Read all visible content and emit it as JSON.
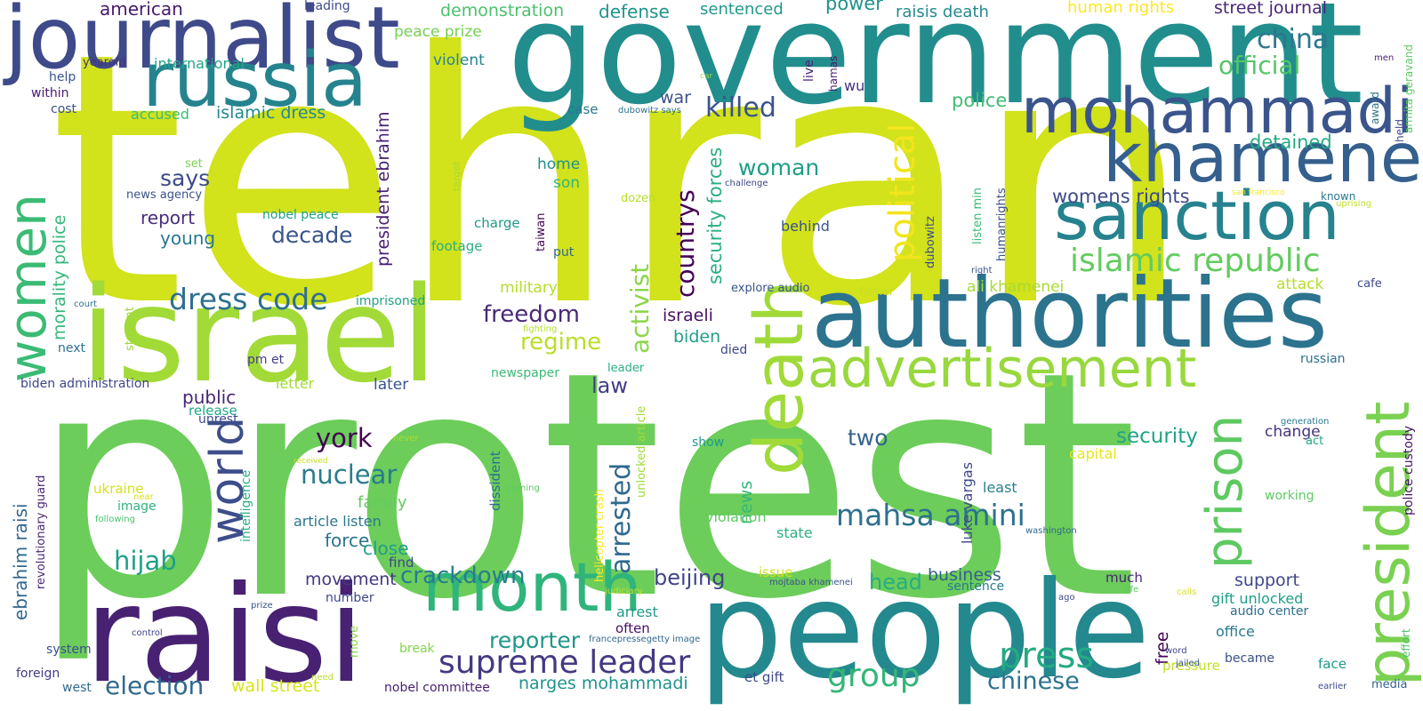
{
  "words": [
    {
      "text": "tehran",
      "color": "#d2e21b"
    },
    {
      "text": "protest",
      "color": "#6ccd5a"
    },
    {
      "text": "government",
      "color": "#228d8d"
    },
    {
      "text": "israel",
      "color": "#a2da37"
    },
    {
      "text": "raisi",
      "color": "#482173"
    },
    {
      "text": "people",
      "color": "#23898e"
    },
    {
      "text": "authorities",
      "color": "#2c738e"
    },
    {
      "text": "journalist",
      "color": "#3e4a89"
    },
    {
      "text": "russia",
      "color": "#25838e"
    },
    {
      "text": "mohammadi",
      "color": "#3a548c"
    },
    {
      "text": "khamenei",
      "color": "#355f8d"
    },
    {
      "text": "sanction",
      "color": "#26828e"
    },
    {
      "text": "death",
      "color": "#a0da39"
    },
    {
      "text": "advertisement",
      "color": "#98d83e"
    },
    {
      "text": "president",
      "color": "#7ad151"
    },
    {
      "text": "month",
      "color": "#2fb47c"
    },
    {
      "text": "women",
      "color": "#3bbb75"
    },
    {
      "text": "world",
      "color": "#3d4e8a"
    },
    {
      "text": "prison",
      "color": "#5ec962"
    },
    {
      "text": "press",
      "color": "#24aa83"
    },
    {
      "text": "supreme leader",
      "color": "#443983"
    },
    {
      "text": "group",
      "color": "#34b679"
    },
    {
      "text": "islamic republic",
      "color": "#63cb5f"
    },
    {
      "text": "political",
      "color": "#f1e51d"
    },
    {
      "text": "dress code",
      "color": "#2d708e"
    },
    {
      "text": "mahsa amini",
      "color": "#2d718e"
    },
    {
      "text": "election",
      "color": "#31688e"
    },
    {
      "text": "activist",
      "color": "#8bd646"
    },
    {
      "text": "arrested",
      "color": "#306a8e"
    },
    {
      "text": "countrys",
      "color": "#440154"
    },
    {
      "text": "killed",
      "color": "#3b528b"
    },
    {
      "text": "china",
      "color": "#2a778e"
    },
    {
      "text": "official",
      "color": "#52c569"
    },
    {
      "text": "hijab",
      "color": "#1fa088"
    },
    {
      "text": "nuclear",
      "color": "#287c8e"
    },
    {
      "text": "crackdown",
      "color": "#287d8e"
    },
    {
      "text": "freedom",
      "color": "#482878"
    },
    {
      "text": "regime",
      "color": "#b8de29"
    },
    {
      "text": "york",
      "color": "#440154"
    },
    {
      "text": "chinese",
      "color": "#2c728e"
    },
    {
      "text": "decade",
      "color": "#39558c"
    },
    {
      "text": "woman",
      "color": "#1f9e89"
    },
    {
      "text": "reporter",
      "color": "#1f968b"
    },
    {
      "text": "says",
      "color": "#3e4989"
    },
    {
      "text": "two",
      "color": "#33638d"
    },
    {
      "text": "security",
      "color": "#20a386"
    },
    {
      "text": "beijing",
      "color": "#414487"
    },
    {
      "text": "head",
      "color": "#26ad81"
    },
    {
      "text": "law",
      "color": "#433e85"
    },
    {
      "text": "security forces",
      "color": "#29af7f"
    },
    {
      "text": "power",
      "color": "#20928c"
    },
    {
      "text": "police",
      "color": "#3fbc73"
    },
    {
      "text": "wall street",
      "color": "#d8e219"
    },
    {
      "text": "womens rights",
      "color": "#3e4989"
    },
    {
      "text": "detained",
      "color": "#25ab82"
    },
    {
      "text": "ebrahim raisi",
      "color": "#31678e"
    },
    {
      "text": "narges mohammadi",
      "color": "#1f948c"
    },
    {
      "text": "street journal",
      "color": "#482475"
    },
    {
      "text": "american",
      "color": "#481a6c"
    },
    {
      "text": "demonstration",
      "color": "#4ac16d"
    },
    {
      "text": "defense",
      "color": "#20928c"
    },
    {
      "text": "sentenced",
      "color": "#1f988b"
    },
    {
      "text": "human rights",
      "color": "#fde725"
    },
    {
      "text": "raisis death",
      "color": "#23898e"
    },
    {
      "text": "islamic dress",
      "color": "#23898e"
    },
    {
      "text": "president ebrahim",
      "color": "#482173"
    },
    {
      "text": "morality police",
      "color": "#35b779"
    },
    {
      "text": "news",
      "color": "#35b779"
    },
    {
      "text": "young",
      "color": "#2a788e"
    },
    {
      "text": "report",
      "color": "#472d7b"
    },
    {
      "text": "public",
      "color": "#482475"
    },
    {
      "text": "war",
      "color": "#3b528b"
    },
    {
      "text": "business",
      "color": "#355f8d"
    },
    {
      "text": "biden",
      "color": "#1f9f88"
    },
    {
      "text": "israeli",
      "color": "#471063"
    },
    {
      "text": "movement",
      "color": "#453781"
    },
    {
      "text": "force",
      "color": "#2b758e"
    },
    {
      "text": "close",
      "color": "#1f9f88"
    },
    {
      "text": "family",
      "color": "#65cb5e"
    },
    {
      "text": "support",
      "color": "#3f4788"
    },
    {
      "text": "free",
      "color": "#440154"
    },
    {
      "text": "military",
      "color": "#b5de2b"
    },
    {
      "text": "violent",
      "color": "#25848e"
    },
    {
      "text": "accused",
      "color": "#3bbb75"
    },
    {
      "text": "peace prize",
      "color": "#75d054"
    },
    {
      "text": "international",
      "color": "#21a585"
    },
    {
      "text": "home",
      "color": "#21918c"
    },
    {
      "text": "son",
      "color": "#35b779"
    },
    {
      "text": "change",
      "color": "#46337f"
    },
    {
      "text": "capital",
      "color": "#e7e419"
    },
    {
      "text": "arrest",
      "color": "#1f9a8a"
    },
    {
      "text": "ali khamenei",
      "color": "#a8db34"
    },
    {
      "text": "attack",
      "color": "#b5de2b"
    },
    {
      "text": "luke vargas",
      "color": "#3e4a89"
    },
    {
      "text": "gift unlocked",
      "color": "#1fa187"
    },
    {
      "text": "audio center",
      "color": "#2e6e8e"
    },
    {
      "text": "office",
      "color": "#297a8e"
    },
    {
      "text": "pressure",
      "color": "#c2df23"
    },
    {
      "text": "dissident",
      "color": "#2e6f8e"
    },
    {
      "text": "behind",
      "color": "#3b518b"
    },
    {
      "text": "violation",
      "color": "#5ec962"
    },
    {
      "text": "state",
      "color": "#2ab07f"
    },
    {
      "text": "least",
      "color": "#277f8e"
    },
    {
      "text": "charge",
      "color": "#1e9b8a"
    },
    {
      "text": "footage",
      "color": "#29af7f"
    },
    {
      "text": "letter",
      "color": "#a2da37"
    },
    {
      "text": "later",
      "color": "#39558c"
    },
    {
      "text": "release",
      "color": "#21a685"
    },
    {
      "text": "article listen",
      "color": "#2a788e"
    },
    {
      "text": "find",
      "color": "#404588"
    },
    {
      "text": "nobel committee",
      "color": "#481f70"
    },
    {
      "text": "et gift",
      "color": "#3f4889"
    },
    {
      "text": "face",
      "color": "#1f978b"
    },
    {
      "text": "became",
      "color": "#3b518b"
    },
    {
      "text": "often",
      "color": "#471063"
    },
    {
      "text": "much",
      "color": "#482374"
    },
    {
      "text": "sentence",
      "color": "#287d8e"
    },
    {
      "text": "issue",
      "color": "#d0e11c"
    },
    {
      "text": "unrest",
      "color": "#3e4c8a"
    },
    {
      "text": "image",
      "color": "#2db27d"
    },
    {
      "text": "ukraine",
      "color": "#d5e21a"
    },
    {
      "text": "revolutionary guard",
      "color": "#482878"
    },
    {
      "text": "intelligence",
      "color": "#2ab07f"
    },
    {
      "text": "foreign",
      "color": "#433d84"
    },
    {
      "text": "west",
      "color": "#306a8e"
    },
    {
      "text": "system",
      "color": "#3b518b"
    },
    {
      "text": "break",
      "color": "#84d44b"
    },
    {
      "text": "number",
      "color": "#3f4889"
    },
    {
      "text": "move",
      "color": "#86d549"
    },
    {
      "text": "imprisoned",
      "color": "#20a386"
    },
    {
      "text": "nobel peace",
      "color": "#1fa088"
    },
    {
      "text": "biden administration",
      "color": "#3f4788"
    },
    {
      "text": "next",
      "color": "#2c728e"
    },
    {
      "text": "student",
      "color": "#9bd93c"
    },
    {
      "text": "pm et",
      "color": "#433e85"
    },
    {
      "text": "newspaper",
      "color": "#3aba76"
    },
    {
      "text": "explore audio",
      "color": "#3a548c"
    },
    {
      "text": "father",
      "color": "#c8e020"
    },
    {
      "text": "russian",
      "color": "#2c718e"
    },
    {
      "text": "cafe",
      "color": "#3e4a89"
    },
    {
      "text": "show",
      "color": "#1f9a8a"
    },
    {
      "text": "working",
      "color": "#5ec962"
    },
    {
      "text": "act",
      "color": "#22a785"
    },
    {
      "text": "police custody",
      "color": "#481668"
    },
    {
      "text": "generation",
      "color": "#2a788e"
    },
    {
      "text": "media",
      "color": "#32658e"
    },
    {
      "text": "effort",
      "color": "#4cc26c"
    },
    {
      "text": "earlier",
      "color": "#3e4a89"
    },
    {
      "text": "word",
      "color": "#404588"
    },
    {
      "text": "jailed",
      "color": "#39558c"
    },
    {
      "text": "washington",
      "color": "#31688e"
    },
    {
      "text": "known",
      "color": "#2a788e"
    },
    {
      "text": "award",
      "color": "#2c728e"
    },
    {
      "text": "held",
      "color": "#3e4a89"
    },
    {
      "text": "armita geravand",
      "color": "#5ec962"
    },
    {
      "text": "men",
      "color": "#482475"
    },
    {
      "text": "uprising",
      "color": "#c2df23"
    },
    {
      "text": "san francisco",
      "color": "#fde725"
    },
    {
      "text": "challenge",
      "color": "#3e4989"
    },
    {
      "text": "target",
      "color": "#a8db34"
    },
    {
      "text": "dozen",
      "color": "#b5de2b"
    },
    {
      "text": "set",
      "color": "#7ad151"
    },
    {
      "text": "news agency",
      "color": "#3b528b"
    },
    {
      "text": "helicopter crash",
      "color": "#fde725"
    },
    {
      "text": "unlocked article",
      "color": "#a0da39"
    },
    {
      "text": "taiwan",
      "color": "#440154"
    },
    {
      "text": "put",
      "color": "#31688e"
    },
    {
      "text": "dubowitz",
      "color": "#3e4a89"
    },
    {
      "text": "listen min",
      "color": "#3aba76"
    },
    {
      "text": "humanrights",
      "color": "#3b528b"
    },
    {
      "text": "right",
      "color": "#3b528b"
    },
    {
      "text": "dubowitz says",
      "color": "#2c728e"
    },
    {
      "text": "car",
      "color": "#9bd93c"
    },
    {
      "text": "case",
      "color": "#2a788e"
    },
    {
      "text": "live",
      "color": "#482475"
    },
    {
      "text": "hamas",
      "color": "#481a6c"
    },
    {
      "text": "wu",
      "color": "#46337f"
    },
    {
      "text": "leading",
      "color": "#3e4a89"
    },
    {
      "text": "yearold",
      "color": "#46337f"
    },
    {
      "text": "help",
      "color": "#39558c"
    },
    {
      "text": "within",
      "color": "#481a6c"
    },
    {
      "text": "cost",
      "color": "#3b528b"
    },
    {
      "text": "court",
      "color": "#2c728e"
    },
    {
      "text": "fighting",
      "color": "#b5de2b"
    },
    {
      "text": "leader",
      "color": "#2ab07f"
    },
    {
      "text": "died",
      "color": "#3e4a89"
    },
    {
      "text": "received",
      "color": "#c8e020"
    },
    {
      "text": "never",
      "color": "#aadc32"
    },
    {
      "text": "coming",
      "color": "#5ec962"
    },
    {
      "text": "near",
      "color": "#d8e219"
    },
    {
      "text": "following",
      "color": "#4ac16d"
    },
    {
      "text": "prize",
      "color": "#3b528b"
    },
    {
      "text": "control",
      "color": "#404588"
    },
    {
      "text": "need",
      "color": "#b8de29"
    },
    {
      "text": "judiciary",
      "color": "#c8e020"
    },
    {
      "text": "francepressegetty image",
      "color": "#31688e"
    },
    {
      "text": "mojtaba khamenei",
      "color": "#3b528b"
    },
    {
      "text": "life",
      "color": "#5ec962"
    },
    {
      "text": "calls",
      "color": "#d8e219"
    },
    {
      "text": "ago",
      "color": "#3e4a89"
    }
  ]
}
